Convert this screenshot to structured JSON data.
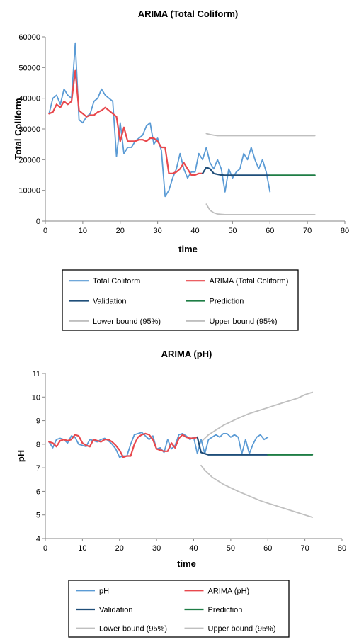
{
  "colors": {
    "observed": "#5b9bd5",
    "arima": "#e8484d",
    "validation": "#1f4e79",
    "prediction": "#1e7d45",
    "bound": "#bfbfbf",
    "axis": "#868686",
    "frame": "#000000"
  },
  "chart_data": [
    {
      "type": "line",
      "title": "ARIMA (Total Coliform)",
      "xlabel": "time",
      "ylabel": "Total Coliform",
      "xlim": [
        0,
        80
      ],
      "ylim": [
        0,
        60000
      ],
      "xticks": [
        "0",
        "10",
        "20",
        "30",
        "40",
        "50",
        "60",
        "70",
        "80"
      ],
      "yticks": [
        "0",
        "10000",
        "20000",
        "30000",
        "40000",
        "50000",
        "60000"
      ],
      "grid": false,
      "legend_position": "bottom",
      "legend": [
        "Total Coliform",
        "ARIMA (Total Coliform)",
        "Validation",
        "Prediction",
        "Lower bound (95%)",
        "Upper bound (95%)"
      ],
      "series": [
        {
          "name": "Total Coliform",
          "color_key": "observed",
          "x": [
            1,
            2,
            3,
            4,
            5,
            6,
            7,
            8,
            9,
            10,
            11,
            12,
            13,
            14,
            15,
            16,
            17,
            18,
            19,
            20,
            21,
            22,
            23,
            24,
            25,
            26,
            27,
            28,
            29,
            30,
            31,
            32,
            33,
            34,
            35,
            36,
            37,
            38,
            39,
            40,
            41,
            42,
            43,
            44,
            45,
            46,
            47,
            48,
            49,
            50,
            51,
            52,
            53,
            54,
            55,
            56,
            57,
            58,
            59,
            60
          ],
          "y": [
            35000,
            40000,
            41000,
            38000,
            43000,
            41000,
            40000,
            58000,
            33000,
            32000,
            34000,
            35000,
            39000,
            40000,
            43000,
            41000,
            40000,
            39000,
            21000,
            32000,
            22000,
            24000,
            24000,
            26000,
            27000,
            28000,
            31000,
            32000,
            25000,
            27000,
            23000,
            8000,
            10000,
            14000,
            17000,
            22000,
            17000,
            14000,
            16000,
            16000,
            22000,
            20000,
            24000,
            19000,
            17000,
            20000,
            17000,
            9500,
            17000,
            14000,
            16000,
            17000,
            22000,
            20000,
            24000,
            20000,
            17000,
            20000,
            16000,
            9500
          ]
        },
        {
          "name": "ARIMA (Total Coliform)",
          "color_key": "arima",
          "x": [
            1,
            2,
            3,
            4,
            5,
            6,
            7,
            8,
            9,
            10,
            11,
            12,
            13,
            14,
            15,
            16,
            17,
            18,
            19,
            20,
            21,
            22,
            23,
            24,
            25,
            26,
            27,
            28,
            29,
            30,
            31,
            32,
            33,
            34,
            35,
            36,
            37,
            38,
            39,
            40,
            41,
            42
          ],
          "y": [
            35000,
            35500,
            38000,
            37000,
            39000,
            38000,
            39000,
            49000,
            36000,
            35000,
            34000,
            34500,
            34500,
            35500,
            36000,
            37000,
            36000,
            35000,
            34000,
            26000,
            30500,
            26000,
            26000,
            26000,
            26500,
            26500,
            26000,
            27000,
            27000,
            26000,
            24000,
            24000,
            15500,
            15500,
            16000,
            17000,
            19000,
            17000,
            15000,
            15000,
            15500,
            15500
          ]
        },
        {
          "name": "Validation",
          "color_key": "validation",
          "x": [
            42,
            43,
            44,
            45,
            46,
            47,
            48,
            49,
            50,
            51,
            52,
            53,
            54,
            55,
            56,
            57,
            58,
            59,
            60
          ],
          "y": [
            15500,
            17500,
            17000,
            15500,
            15200,
            15000,
            14900,
            14900,
            14900,
            14900,
            14900,
            14900,
            14900,
            14900,
            14900,
            14900,
            14900,
            14900,
            14900
          ]
        },
        {
          "name": "Prediction",
          "color_key": "prediction",
          "x": [
            60,
            62,
            64,
            66,
            68,
            70,
            72
          ],
          "y": [
            14900,
            14900,
            14900,
            14900,
            14900,
            14900,
            14900
          ]
        },
        {
          "name": "Lower bound (95%)",
          "color_key": "bound",
          "x": [
            43,
            44,
            45,
            46,
            47,
            48,
            50,
            55,
            60,
            65,
            70,
            72
          ],
          "y": [
            5500,
            3500,
            2700,
            2300,
            2200,
            2100,
            2100,
            2100,
            2100,
            2100,
            2100,
            2100
          ]
        },
        {
          "name": "Upper bound (95%)",
          "color_key": "bound",
          "x": [
            43,
            44,
            45,
            46,
            47,
            48,
            50,
            55,
            60,
            65,
            70,
            72
          ],
          "y": [
            28500,
            28200,
            28000,
            27800,
            27800,
            27800,
            27800,
            27800,
            27800,
            27800,
            27800,
            27800
          ]
        }
      ]
    },
    {
      "type": "line",
      "title": "ARIMA (pH)",
      "xlabel": "time",
      "ylabel": "pH",
      "xlim": [
        0,
        80
      ],
      "ylim": [
        4,
        11
      ],
      "xticks": [
        "0",
        "10",
        "20",
        "30",
        "40",
        "50",
        "60",
        "70",
        "80"
      ],
      "yticks": [
        "4",
        "5",
        "6",
        "7",
        "8",
        "9",
        "10",
        "11"
      ],
      "grid": false,
      "legend_position": "bottom",
      "legend": [
        "pH",
        "ARIMA (pH)",
        "Validation",
        "Prediction",
        "Lower bound (95%)",
        "Upper bound (95%)"
      ],
      "series": [
        {
          "name": "pH",
          "color_key": "observed",
          "x": [
            1,
            2,
            3,
            4,
            5,
            6,
            7,
            8,
            9,
            10,
            11,
            12,
            13,
            14,
            15,
            16,
            17,
            18,
            19,
            20,
            21,
            22,
            23,
            24,
            25,
            26,
            27,
            28,
            29,
            30,
            31,
            32,
            33,
            34,
            35,
            36,
            37,
            38,
            39,
            40,
            41,
            42,
            43,
            44,
            45,
            46,
            47,
            48,
            49,
            50,
            51,
            52,
            53,
            54,
            55,
            56,
            57,
            58,
            59,
            60
          ],
          "y": [
            8.1,
            7.85,
            8.2,
            8.25,
            8.2,
            8.05,
            8.35,
            8.3,
            8.0,
            7.95,
            7.9,
            8.2,
            8.15,
            8.1,
            8.2,
            8.25,
            8.15,
            8.0,
            7.8,
            7.45,
            7.5,
            7.5,
            8.0,
            8.4,
            8.45,
            8.5,
            8.35,
            8.2,
            8.35,
            7.8,
            7.85,
            7.65,
            8.2,
            7.8,
            7.95,
            8.4,
            8.45,
            8.35,
            8.2,
            8.3,
            7.6,
            8.2,
            7.6,
            8.2,
            8.3,
            8.4,
            8.3,
            8.45,
            8.45,
            8.3,
            8.4,
            8.3,
            7.6,
            8.2,
            7.6,
            8.0,
            8.3,
            8.4,
            8.2,
            8.3
          ]
        },
        {
          "name": "ARIMA (pH)",
          "color_key": "arima",
          "x": [
            1,
            2,
            3,
            4,
            5,
            6,
            7,
            8,
            9,
            10,
            11,
            12,
            13,
            14,
            15,
            16,
            17,
            18,
            19,
            20,
            21,
            22,
            23,
            24,
            25,
            26,
            27,
            28,
            29,
            30,
            31,
            32,
            33,
            34,
            35,
            36,
            37,
            38,
            39,
            40,
            41
          ],
          "y": [
            8.1,
            8.05,
            7.9,
            8.15,
            8.2,
            8.15,
            8.2,
            8.4,
            8.35,
            8.05,
            7.95,
            7.9,
            8.2,
            8.15,
            8.1,
            8.2,
            8.2,
            8.1,
            7.95,
            7.75,
            7.45,
            7.5,
            7.5,
            8.0,
            8.3,
            8.4,
            8.45,
            8.4,
            8.2,
            7.8,
            7.75,
            7.7,
            7.7,
            8.05,
            7.85,
            8.25,
            8.4,
            8.3,
            8.25,
            8.25,
            8.3
          ]
        },
        {
          "name": "Validation",
          "color_key": "validation",
          "x": [
            41,
            42,
            43,
            44,
            45,
            46,
            50,
            55,
            60
          ],
          "y": [
            8.3,
            7.65,
            7.6,
            7.55,
            7.55,
            7.55,
            7.55,
            7.55,
            7.55
          ]
        },
        {
          "name": "Prediction",
          "color_key": "prediction",
          "x": [
            60,
            64,
            68,
            72
          ],
          "y": [
            7.55,
            7.55,
            7.55,
            7.55
          ]
        },
        {
          "name": "Lower bound (95%)",
          "color_key": "bound",
          "x": [
            42,
            43,
            44,
            45,
            46,
            48,
            50,
            52,
            55,
            58,
            60,
            62,
            65,
            68,
            70,
            72
          ],
          "y": [
            7.1,
            6.9,
            6.75,
            6.6,
            6.5,
            6.3,
            6.15,
            6.0,
            5.8,
            5.6,
            5.5,
            5.4,
            5.25,
            5.1,
            5.0,
            4.9
          ]
        },
        {
          "name": "Upper bound (95%)",
          "color_key": "bound",
          "x": [
            42,
            43,
            44,
            45,
            46,
            48,
            50,
            52,
            55,
            58,
            60,
            62,
            65,
            68,
            70,
            72
          ],
          "y": [
            8.1,
            8.25,
            8.4,
            8.5,
            8.6,
            8.8,
            8.95,
            9.1,
            9.3,
            9.45,
            9.55,
            9.65,
            9.8,
            9.95,
            10.1,
            10.2
          ]
        }
      ]
    }
  ]
}
